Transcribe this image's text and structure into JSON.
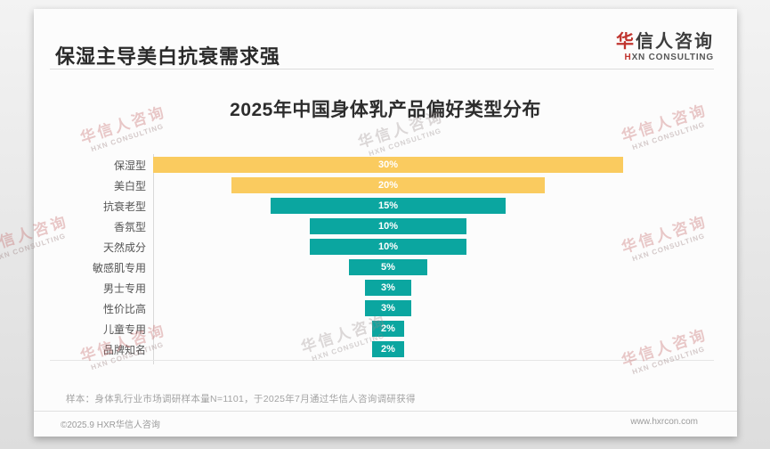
{
  "page": {
    "header": {
      "title": "保湿主导美白抗衰需求强"
    },
    "logo": {
      "cn_first": "华",
      "cn_rest": "信人咨询",
      "en_first": "H",
      "en_rest": "XN CONSULTING",
      "accent_color": "#c0342e"
    },
    "watermark": {
      "line1": "华信人咨询",
      "line2": "HXN CONSULTING"
    },
    "footer": {
      "sample_note": "样本：身体乳行业市场调研样本量N=1101，于2025年7月通过华信人咨询调研获得",
      "copyright": "©2025.9 HXR华信人咨询",
      "website": "www.hxrcon.com"
    }
  },
  "chart_data": {
    "type": "bar",
    "variant": "centered-funnel",
    "orientation": "horizontal",
    "title": "2025年中国身体乳产品偏好类型分布",
    "categories": [
      "保湿型",
      "美白型",
      "抗衰老型",
      "香氛型",
      "天然成分",
      "敏感肌专用",
      "男士专用",
      "性价比高",
      "儿童专用",
      "品牌知名"
    ],
    "values": [
      30,
      20,
      15,
      10,
      10,
      5,
      3,
      3,
      2,
      2
    ],
    "value_labels": [
      "30%",
      "20%",
      "15%",
      "10%",
      "10%",
      "5%",
      "3%",
      "3%",
      "2%",
      "2%"
    ],
    "unit": "%",
    "xlim": [
      0,
      30
    ],
    "colors": [
      "#facb5f",
      "#facb5f",
      "#0ba6a0",
      "#0ba6a0",
      "#0ba6a0",
      "#0ba6a0",
      "#0ba6a0",
      "#0ba6a0",
      "#0ba6a0",
      "#0ba6a0"
    ],
    "value_label_color": "#ffffff",
    "grid": false,
    "legend": false
  }
}
